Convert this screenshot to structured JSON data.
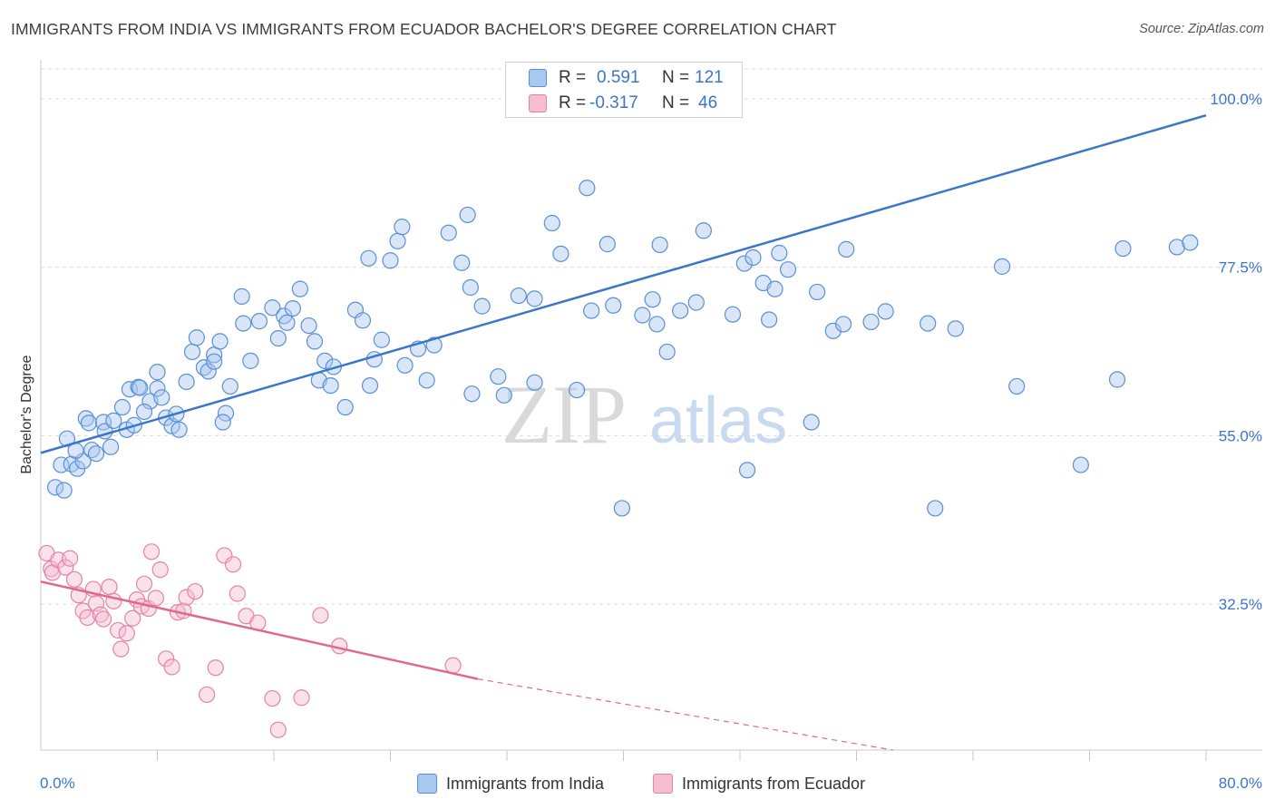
{
  "title": "IMMIGRANTS FROM INDIA VS IMMIGRANTS FROM ECUADOR BACHELOR'S DEGREE CORRELATION CHART",
  "source": "Source: ZipAtlas.com",
  "watermark": {
    "zip": "ZIP",
    "atlas": "atlas"
  },
  "legend_top": {
    "r_label": "R =",
    "n_label": "N =",
    "rows": [
      {
        "r": "0.591",
        "n": "121",
        "fill": "#a9c8ef",
        "stroke": "#5b8fd6"
      },
      {
        "r": "-0.317",
        "n": "46",
        "fill": "#f6bdd0",
        "stroke": "#e384a7"
      }
    ]
  },
  "legend_bottom": [
    {
      "label": "Immigrants from India",
      "fill": "#a9c8ef",
      "stroke": "#5b8fd6"
    },
    {
      "label": "Immigrants from Ecuador",
      "fill": "#f6bdd0",
      "stroke": "#e384a7"
    }
  ],
  "chart_data": {
    "type": "scatter",
    "title": "IMMIGRANTS FROM INDIA VS IMMIGRANTS FROM ECUADOR BACHELOR'S DEGREE CORRELATION CHART",
    "xlabel": "",
    "ylabel": "Bachelor's Degree",
    "xlim": [
      0,
      80
    ],
    "ylim": [
      13,
      104
    ],
    "x_tick_labels": [
      "0.0%",
      "80.0%"
    ],
    "y_ticks": [
      32.5,
      55.0,
      77.5,
      100.0
    ],
    "y_tick_labels": [
      "32.5%",
      "55.0%",
      "77.5%",
      "100.0%"
    ],
    "grid": true,
    "legend_position": "bottom",
    "colors": {
      "india": "#3b76c9",
      "ecuador": "#e0688f",
      "axis_label": "#3b76c9"
    },
    "series": [
      {
        "name": "Immigrants from India",
        "color": "#5b8fd6",
        "fill": "#a9c8ef",
        "trend": {
          "x": [
            0,
            80
          ],
          "y": [
            52.7,
            97.8
          ],
          "style": "solid"
        },
        "points": [
          [
            1.0,
            48.1
          ],
          [
            1.6,
            47.7
          ],
          [
            1.4,
            51.1
          ],
          [
            2.1,
            51.2
          ],
          [
            2.5,
            50.6
          ],
          [
            2.9,
            51.6
          ],
          [
            1.8,
            54.6
          ],
          [
            2.4,
            53.0
          ],
          [
            3.1,
            57.3
          ],
          [
            3.3,
            56.7
          ],
          [
            3.5,
            53.1
          ],
          [
            3.8,
            52.6
          ],
          [
            4.3,
            56.8
          ],
          [
            4.4,
            55.6
          ],
          [
            4.8,
            53.5
          ],
          [
            5.0,
            57.0
          ],
          [
            5.6,
            58.8
          ],
          [
            5.9,
            55.8
          ],
          [
            6.4,
            56.4
          ],
          [
            6.1,
            61.2
          ],
          [
            6.7,
            61.5
          ],
          [
            6.8,
            61.4
          ],
          [
            7.5,
            59.6
          ],
          [
            7.1,
            58.2
          ],
          [
            8.0,
            61.3
          ],
          [
            8.3,
            60.1
          ],
          [
            8.0,
            63.5
          ],
          [
            8.6,
            57.4
          ],
          [
            9.0,
            56.3
          ],
          [
            9.5,
            55.8
          ],
          [
            9.3,
            57.9
          ],
          [
            10.0,
            62.2
          ],
          [
            10.4,
            66.2
          ],
          [
            10.7,
            68.1
          ],
          [
            11.2,
            64.1
          ],
          [
            11.5,
            63.6
          ],
          [
            11.9,
            65.8
          ],
          [
            11.9,
            64.9
          ],
          [
            12.3,
            67.6
          ],
          [
            12.7,
            58.0
          ],
          [
            12.5,
            56.8
          ],
          [
            13.0,
            61.6
          ],
          [
            13.9,
            70.0
          ],
          [
            13.8,
            73.6
          ],
          [
            14.4,
            65.0
          ],
          [
            15.0,
            70.3
          ],
          [
            15.9,
            72.1
          ],
          [
            16.3,
            68.0
          ],
          [
            16.7,
            71.0
          ],
          [
            16.9,
            70.1
          ],
          [
            17.3,
            72.0
          ],
          [
            17.8,
            74.6
          ],
          [
            18.4,
            69.7
          ],
          [
            18.8,
            67.6
          ],
          [
            19.1,
            62.4
          ],
          [
            19.5,
            65.0
          ],
          [
            19.9,
            61.7
          ],
          [
            20.1,
            64.2
          ],
          [
            20.9,
            58.8
          ],
          [
            21.6,
            71.8
          ],
          [
            22.1,
            70.4
          ],
          [
            22.5,
            78.7
          ],
          [
            22.6,
            61.7
          ],
          [
            22.9,
            65.2
          ],
          [
            23.4,
            67.8
          ],
          [
            24.0,
            78.4
          ],
          [
            24.5,
            81.0
          ],
          [
            24.8,
            82.9
          ],
          [
            25.0,
            64.4
          ],
          [
            25.9,
            66.6
          ],
          [
            26.5,
            62.4
          ],
          [
            27.0,
            67.1
          ],
          [
            28.0,
            82.1
          ],
          [
            28.9,
            78.1
          ],
          [
            29.3,
            84.5
          ],
          [
            29.6,
            60.6
          ],
          [
            29.5,
            74.8
          ],
          [
            30.3,
            72.3
          ],
          [
            31.4,
            62.9
          ],
          [
            31.8,
            60.4
          ],
          [
            32.8,
            73.7
          ],
          [
            33.9,
            73.3
          ],
          [
            33.9,
            62.1
          ],
          [
            35.1,
            83.4
          ],
          [
            35.7,
            79.3
          ],
          [
            36.8,
            61.1
          ],
          [
            37.5,
            88.1
          ],
          [
            37.8,
            71.7
          ],
          [
            38.9,
            80.6
          ],
          [
            39.3,
            72.4
          ],
          [
            39.9,
            45.3
          ],
          [
            41.3,
            71.1
          ],
          [
            42.0,
            73.2
          ],
          [
            42.3,
            69.9
          ],
          [
            42.5,
            80.5
          ],
          [
            43.0,
            66.2
          ],
          [
            43.9,
            71.7
          ],
          [
            45.0,
            72.8
          ],
          [
            45.5,
            82.4
          ],
          [
            47.5,
            71.2
          ],
          [
            48.3,
            78.0
          ],
          [
            48.9,
            78.8
          ],
          [
            48.5,
            50.4
          ],
          [
            49.6,
            75.4
          ],
          [
            50.0,
            70.5
          ],
          [
            50.4,
            74.6
          ],
          [
            50.7,
            79.4
          ],
          [
            51.3,
            77.2
          ],
          [
            52.9,
            56.8
          ],
          [
            53.3,
            74.2
          ],
          [
            54.4,
            69.0
          ],
          [
            55.1,
            69.9
          ],
          [
            55.3,
            79.9
          ],
          [
            57.0,
            70.2
          ],
          [
            58.0,
            71.6
          ],
          [
            60.9,
            70.0
          ],
          [
            61.4,
            45.3
          ],
          [
            62.8,
            69.3
          ],
          [
            66.0,
            77.6
          ],
          [
            67.0,
            61.6
          ],
          [
            71.4,
            51.1
          ],
          [
            73.9,
            62.5
          ],
          [
            74.3,
            80.0
          ],
          [
            78.0,
            80.2
          ],
          [
            78.9,
            80.8
          ]
        ]
      },
      {
        "name": "Immigrants from Ecuador",
        "color": "#e384a7",
        "fill": "#f6bdd0",
        "trend": {
          "x": [
            0,
            30
          ],
          "y": [
            35.5,
            22.5
          ],
          "style": "solid",
          "extend_to": [
            58.5,
            13.0
          ],
          "extend_style": "dashed"
        },
        "points": [
          [
            0.4,
            39.3
          ],
          [
            0.7,
            37.2
          ],
          [
            0.8,
            36.7
          ],
          [
            1.2,
            38.4
          ],
          [
            1.7,
            37.4
          ],
          [
            2.0,
            38.6
          ],
          [
            2.3,
            35.8
          ],
          [
            2.6,
            33.7
          ],
          [
            2.9,
            31.6
          ],
          [
            3.2,
            30.7
          ],
          [
            3.6,
            34.5
          ],
          [
            3.8,
            32.6
          ],
          [
            4.1,
            31.1
          ],
          [
            4.3,
            30.5
          ],
          [
            4.7,
            34.8
          ],
          [
            5.0,
            32.9
          ],
          [
            5.3,
            29.0
          ],
          [
            5.5,
            26.5
          ],
          [
            5.9,
            28.6
          ],
          [
            6.3,
            30.6
          ],
          [
            6.6,
            33.1
          ],
          [
            6.9,
            32.2
          ],
          [
            7.1,
            35.2
          ],
          [
            7.4,
            31.9
          ],
          [
            7.6,
            39.5
          ],
          [
            7.9,
            33.3
          ],
          [
            8.2,
            37.1
          ],
          [
            8.6,
            25.2
          ],
          [
            9.0,
            24.1
          ],
          [
            9.4,
            31.4
          ],
          [
            9.8,
            31.6
          ],
          [
            10.0,
            33.4
          ],
          [
            10.6,
            34.2
          ],
          [
            11.4,
            20.4
          ],
          [
            12.0,
            24.0
          ],
          [
            12.6,
            39.0
          ],
          [
            13.2,
            37.8
          ],
          [
            13.5,
            33.9
          ],
          [
            14.1,
            30.9
          ],
          [
            14.9,
            30.0
          ],
          [
            15.9,
            19.9
          ],
          [
            16.3,
            15.7
          ],
          [
            17.9,
            20.0
          ],
          [
            19.2,
            31.0
          ],
          [
            20.5,
            26.9
          ],
          [
            28.3,
            24.3
          ]
        ]
      }
    ]
  }
}
